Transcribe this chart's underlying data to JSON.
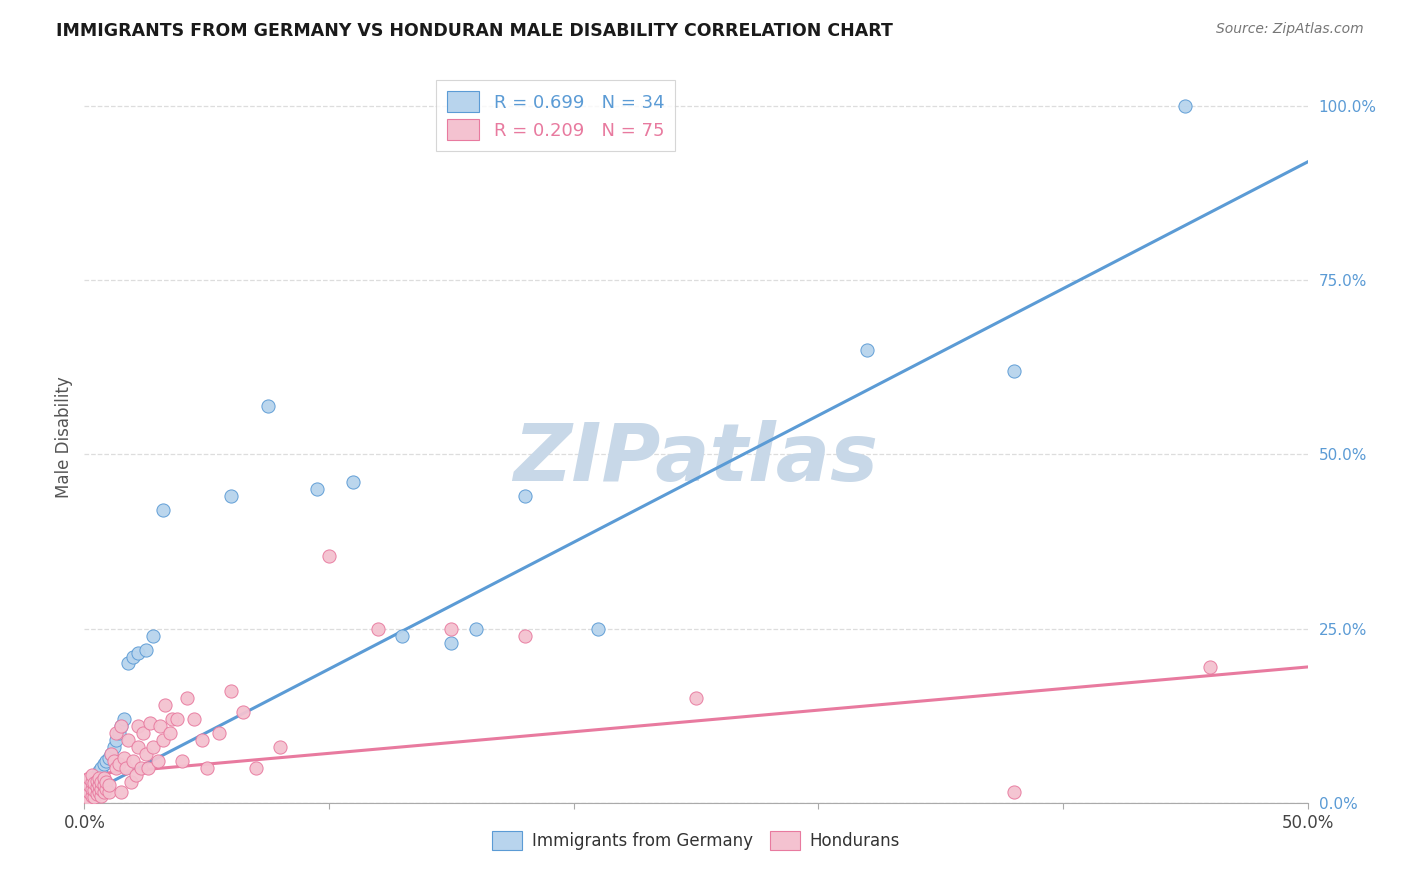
{
  "title": "IMMIGRANTS FROM GERMANY VS HONDURAN MALE DISABILITY CORRELATION CHART",
  "source": "Source: ZipAtlas.com",
  "ylabel": "Male Disability",
  "right_yticks": [
    "0.0%",
    "25.0%",
    "50.0%",
    "75.0%",
    "100.0%"
  ],
  "right_ytick_vals": [
    0.0,
    0.25,
    0.5,
    0.75,
    1.0
  ],
  "legend_blue_label": "R = 0.699   N = 34",
  "legend_pink_label": "R = 0.209   N = 75",
  "legend_bottom_blue": "Immigrants from Germany",
  "legend_bottom_pink": "Hondurans",
  "blue_color": "#b8d4ed",
  "blue_line_color": "#5b9bd5",
  "pink_color": "#f4c2d0",
  "pink_line_color": "#e87a9f",
  "xlim": [
    0,
    0.5
  ],
  "ylim": [
    0.0,
    1.05
  ],
  "background_color": "#ffffff",
  "watermark": "ZIPatlas",
  "watermark_color": "#c8d8e8",
  "grid_color": "#dddddd",
  "blue_x": [
    0.001,
    0.002,
    0.003,
    0.004,
    0.005,
    0.006,
    0.007,
    0.008,
    0.009,
    0.01,
    0.011,
    0.012,
    0.013,
    0.014,
    0.015,
    0.016,
    0.018,
    0.02,
    0.022,
    0.025,
    0.028,
    0.032,
    0.06,
    0.075,
    0.095,
    0.11,
    0.13,
    0.15,
    0.16,
    0.18,
    0.21,
    0.32,
    0.45,
    0.38
  ],
  "blue_y": [
    0.02,
    0.025,
    0.03,
    0.035,
    0.04,
    0.045,
    0.05,
    0.055,
    0.06,
    0.065,
    0.07,
    0.08,
    0.09,
    0.1,
    0.11,
    0.12,
    0.2,
    0.21,
    0.215,
    0.22,
    0.24,
    0.42,
    0.44,
    0.57,
    0.45,
    0.46,
    0.24,
    0.23,
    0.25,
    0.44,
    0.25,
    0.65,
    1.0,
    0.62
  ],
  "pink_x": [
    0.001,
    0.001,
    0.001,
    0.002,
    0.002,
    0.002,
    0.002,
    0.003,
    0.003,
    0.003,
    0.003,
    0.004,
    0.004,
    0.004,
    0.005,
    0.005,
    0.005,
    0.006,
    0.006,
    0.006,
    0.007,
    0.007,
    0.007,
    0.008,
    0.008,
    0.008,
    0.009,
    0.009,
    0.01,
    0.01,
    0.011,
    0.012,
    0.013,
    0.013,
    0.014,
    0.015,
    0.015,
    0.016,
    0.017,
    0.018,
    0.019,
    0.02,
    0.021,
    0.022,
    0.022,
    0.023,
    0.024,
    0.025,
    0.026,
    0.027,
    0.028,
    0.03,
    0.031,
    0.032,
    0.033,
    0.035,
    0.036,
    0.038,
    0.04,
    0.042,
    0.045,
    0.048,
    0.05,
    0.055,
    0.06,
    0.065,
    0.07,
    0.08,
    0.1,
    0.12,
    0.15,
    0.18,
    0.25,
    0.46,
    0.38
  ],
  "pink_y": [
    0.01,
    0.02,
    0.03,
    0.005,
    0.015,
    0.025,
    0.035,
    0.01,
    0.02,
    0.03,
    0.04,
    0.008,
    0.018,
    0.028,
    0.012,
    0.022,
    0.032,
    0.015,
    0.025,
    0.035,
    0.01,
    0.02,
    0.03,
    0.015,
    0.025,
    0.035,
    0.02,
    0.03,
    0.015,
    0.025,
    0.07,
    0.06,
    0.05,
    0.1,
    0.055,
    0.015,
    0.11,
    0.065,
    0.05,
    0.09,
    0.03,
    0.06,
    0.04,
    0.08,
    0.11,
    0.05,
    0.1,
    0.07,
    0.05,
    0.115,
    0.08,
    0.06,
    0.11,
    0.09,
    0.14,
    0.1,
    0.12,
    0.12,
    0.06,
    0.15,
    0.12,
    0.09,
    0.05,
    0.1,
    0.16,
    0.13,
    0.05,
    0.08,
    0.355,
    0.25,
    0.25,
    0.24,
    0.15,
    0.195,
    0.015
  ]
}
